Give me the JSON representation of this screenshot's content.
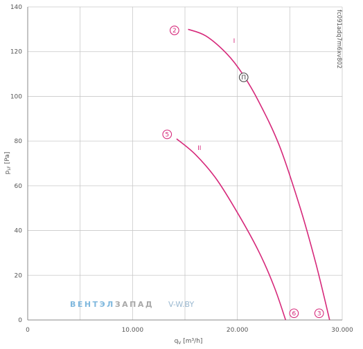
{
  "chart_data": {
    "type": "line",
    "xlabel_main": "q",
    "xlabel_sub": "V",
    "xlabel_unit": "[m³/h]",
    "ylabel_main": "p",
    "ylabel_sub": "sF",
    "ylabel_unit": "[Pa]",
    "xlim": [
      0,
      30000
    ],
    "ylim": [
      0,
      140
    ],
    "x_ticks": [
      0,
      10000,
      20000,
      30000
    ],
    "x_tick_labels": [
      "0",
      "10.000",
      "20.000",
      "30.000"
    ],
    "y_ticks": [
      0,
      20,
      40,
      60,
      80,
      100,
      120,
      140
    ],
    "y_tick_labels": [
      "0",
      "20",
      "40",
      "60",
      "80",
      "100",
      "120",
      "140"
    ],
    "grid": true,
    "series": [
      {
        "name": "I",
        "color": "#d6287a",
        "points": [
          [
            15300,
            130
          ],
          [
            17000,
            127
          ],
          [
            19000,
            119
          ],
          [
            20500,
            110
          ],
          [
            22000,
            98
          ],
          [
            24000,
            78
          ],
          [
            26000,
            50
          ],
          [
            27500,
            25
          ],
          [
            28800,
            0
          ]
        ]
      },
      {
        "name": "II",
        "color": "#d6287a",
        "points": [
          [
            14200,
            81
          ],
          [
            16000,
            74
          ],
          [
            18000,
            63
          ],
          [
            20000,
            48
          ],
          [
            22000,
            31
          ],
          [
            23500,
            15
          ],
          [
            24600,
            0
          ]
        ]
      }
    ],
    "annotations": [
      {
        "text": "2",
        "x": 14000,
        "y": 129.5,
        "type": "point-marker"
      },
      {
        "text": "5",
        "x": 13300,
        "y": 83,
        "type": "point-marker"
      },
      {
        "text": "6",
        "x": 25400,
        "y": 3,
        "type": "point-marker"
      },
      {
        "text": "3",
        "x": 27800,
        "y": 3,
        "type": "point-marker"
      },
      {
        "text": "Π",
        "x": 20600,
        "y": 108.5,
        "type": "operating-point"
      }
    ],
    "curve_labels": [
      {
        "text": "I",
        "x": 19600,
        "y": 124
      },
      {
        "text": "II",
        "x": 16200,
        "y": 76
      }
    ]
  },
  "watermark": {
    "brand": "ВЕНТЭЛЗАПАД",
    "brand_part1": "ВЕНТЭЛ",
    "brand_part2": "ЗАПАД",
    "site": "V-W.BY"
  },
  "figure_code": "fc091adq7m6xv802",
  "colors": {
    "curve": "#d6287a",
    "grid": "#c8c8c8",
    "axis": "#555555",
    "brand1": "#7fb8de",
    "brand2": "#a8a8a8"
  }
}
